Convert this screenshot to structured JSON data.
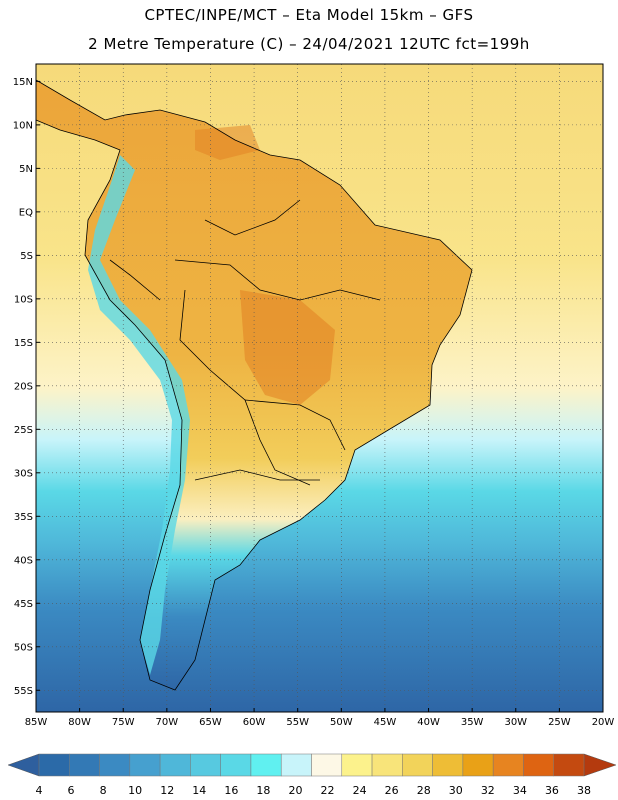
{
  "header": {
    "line1": "CPTEC/INPE/MCT –   Eta Model 15km – GFS",
    "line2": "2 Metre Temperature (C) – 24/04/2021 12UTC fct=199h"
  },
  "map": {
    "lat_labels": [
      "15N",
      "10N",
      "5N",
      "EQ",
      "5S",
      "10S",
      "15S",
      "20S",
      "25S",
      "30S",
      "35S",
      "40S",
      "45S",
      "50S",
      "55S"
    ],
    "lon_labels": [
      "85W",
      "80W",
      "75W",
      "70W",
      "65W",
      "60W",
      "55W",
      "50W",
      "45W",
      "40W",
      "35W",
      "30W",
      "25W",
      "20W"
    ],
    "lon_range": [
      -85,
      -20
    ],
    "lat_range": [
      -57.5,
      17
    ]
  },
  "colorbar": {
    "labels": [
      "4",
      "6",
      "8",
      "10",
      "12",
      "14",
      "16",
      "18",
      "20",
      "22",
      "24",
      "26",
      "28",
      "30",
      "32",
      "34",
      "36",
      "38"
    ],
    "colors": [
      "#2b6aa8",
      "#3379b5",
      "#3b8ac2",
      "#46a0cf",
      "#4fb7d9",
      "#57c9e0",
      "#5ad8e6",
      "#60f0f0",
      "#c8f4fa",
      "#fdf8e6",
      "#fcf28c",
      "#f8e47a",
      "#f2d35a",
      "#eebd36",
      "#e9a117",
      "#e78420",
      "#de6412",
      "#c44a10"
    ],
    "under_color": "#2e5f9e",
    "over_color": "#b43a0e"
  }
}
